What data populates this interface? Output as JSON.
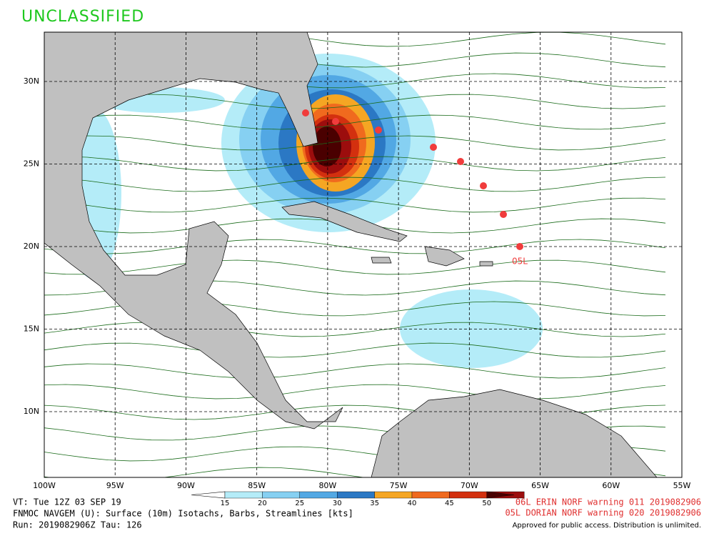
{
  "header": {
    "classification": "UNCLASSIFIED"
  },
  "map": {
    "lon_labels": [
      "100W",
      "95W",
      "90W",
      "85W",
      "80W",
      "75W",
      "70W",
      "65W",
      "60W",
      "55W"
    ],
    "lat_labels": [
      "30N",
      "25N",
      "20N",
      "15N",
      "10N"
    ],
    "track_label": "05L"
  },
  "colorbar": {
    "ticks": [
      "15",
      "20",
      "25",
      "30",
      "35",
      "40",
      "45",
      "50"
    ],
    "colors": [
      "#b4ecf8",
      "#86d0f2",
      "#52a8e4",
      "#2b78c4",
      "#f5a623",
      "#f06a1e",
      "#d3300f",
      "#9c0d0d",
      "#4a0000"
    ]
  },
  "footer": {
    "valid_time": "VT: Tue 12Z 03 SEP 19",
    "product": "FNMOC NAVGEM (U): Surface (10m) Isotachs, Barbs, Streamlines [kts]",
    "run": "Run: 2019082906Z Tau: 126",
    "warnings": [
      "06L ERIN NORF warning 011 2019082906",
      "05L DORIAN NORF warning 020 2019082906"
    ],
    "approval": "Approved for public access. Distribution is unlimited."
  }
}
